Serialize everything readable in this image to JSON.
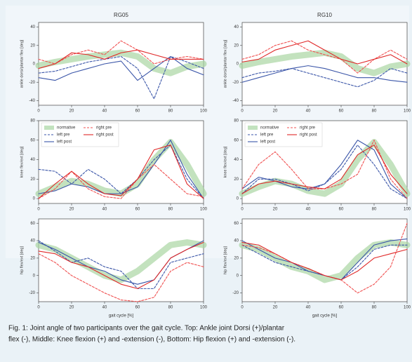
{
  "chart_data": [
    {
      "type": "line",
      "title": "RG05",
      "ylabel": "ankle dorsi/plantar flex [deg]",
      "x": [
        0,
        10,
        20,
        30,
        40,
        50,
        60,
        70,
        80,
        90,
        100
      ],
      "xlim": [
        0,
        100
      ],
      "xticks": [
        0,
        20,
        40,
        60,
        80,
        100
      ],
      "ylim": [
        -45,
        45
      ],
      "yticks": [
        -40,
        -20,
        0,
        20,
        40
      ],
      "series": [
        {
          "color": "#a9d6a3",
          "band": true,
          "values": [
            -2,
            2,
            5,
            8,
            10,
            12,
            8,
            -5,
            -10,
            -3,
            0
          ]
        },
        {
          "color": "#3a55a8",
          "dash": true,
          "values": [
            -10,
            -8,
            -3,
            2,
            5,
            8,
            -5,
            -38,
            8,
            2,
            -5
          ]
        },
        {
          "color": "#3a55a8",
          "values": [
            -15,
            -18,
            -10,
            -5,
            0,
            3,
            -18,
            -5,
            8,
            -5,
            -12
          ]
        },
        {
          "color": "#f05050",
          "dash": true,
          "values": [
            5,
            0,
            10,
            15,
            10,
            25,
            15,
            0,
            5,
            8,
            5
          ]
        },
        {
          "color": "#e02828",
          "values": [
            -5,
            0,
            12,
            10,
            5,
            12,
            15,
            10,
            5,
            5,
            5
          ]
        }
      ]
    },
    {
      "type": "line",
      "title": "RG10",
      "ylabel": "ankle dorsi/plantar flex [deg]",
      "x": [
        0,
        10,
        20,
        30,
        40,
        50,
        60,
        70,
        80,
        90,
        100
      ],
      "xlim": [
        0,
        100
      ],
      "xticks": [
        0,
        20,
        40,
        60,
        80,
        100
      ],
      "ylim": [
        -45,
        45
      ],
      "yticks": [
        -40,
        -20,
        0,
        20,
        40
      ],
      "series": [
        {
          "color": "#a9d6a3",
          "band": true,
          "values": [
            -2,
            2,
            5,
            8,
            10,
            12,
            8,
            -5,
            -10,
            -3,
            0
          ]
        },
        {
          "color": "#3a55a8",
          "dash": true,
          "values": [
            -15,
            -10,
            -8,
            -5,
            -10,
            -15,
            -20,
            -25,
            -18,
            -5,
            -10
          ]
        },
        {
          "color": "#3a55a8",
          "values": [
            -20,
            -15,
            -10,
            -5,
            -2,
            -5,
            -10,
            -15,
            -15,
            -18,
            -20
          ]
        },
        {
          "color": "#f05050",
          "dash": true,
          "values": [
            5,
            10,
            20,
            25,
            15,
            10,
            5,
            -10,
            5,
            15,
            5
          ]
        },
        {
          "color": "#e02828",
          "values": [
            2,
            5,
            15,
            20,
            25,
            15,
            5,
            0,
            5,
            10,
            0
          ]
        }
      ]
    },
    {
      "type": "line",
      "ylabel": "knee flex/ext [deg]",
      "legend": "upper left",
      "x": [
        0,
        10,
        20,
        30,
        40,
        50,
        60,
        70,
        80,
        90,
        100
      ],
      "xlim": [
        0,
        100
      ],
      "xticks": [
        0,
        20,
        40,
        60,
        80,
        100
      ],
      "ylim": [
        -5,
        80
      ],
      "yticks": [
        0,
        20,
        40,
        60,
        80
      ],
      "series": [
        {
          "name": "normative",
          "color": "#a9d6a3",
          "band": true,
          "values": [
            5,
            12,
            18,
            15,
            8,
            5,
            15,
            40,
            58,
            35,
            5
          ]
        },
        {
          "name": "left pre",
          "color": "#3a55a8",
          "dash": true,
          "values": [
            30,
            28,
            15,
            30,
            20,
            5,
            20,
            40,
            55,
            20,
            0
          ]
        },
        {
          "name": "left post",
          "color": "#3a55a8",
          "values": [
            5,
            8,
            15,
            12,
            5,
            5,
            12,
            35,
            60,
            25,
            0
          ]
        },
        {
          "name": "right pre",
          "color": "#f05050",
          "dash": true,
          "values": [
            0,
            10,
            28,
            10,
            2,
            0,
            20,
            35,
            20,
            5,
            2
          ]
        },
        {
          "name": "right post",
          "color": "#e02828",
          "values": [
            0,
            15,
            28,
            15,
            5,
            3,
            20,
            50,
            55,
            15,
            0
          ]
        }
      ]
    },
    {
      "type": "line",
      "ylabel": "knee flex/ext [deg]",
      "legend": "upper left",
      "x": [
        0,
        10,
        20,
        30,
        40,
        50,
        60,
        70,
        80,
        90,
        100
      ],
      "xlim": [
        0,
        100
      ],
      "xticks": [
        0,
        20,
        40,
        60,
        80,
        100
      ],
      "ylim": [
        -5,
        80
      ],
      "yticks": [
        0,
        20,
        40,
        60,
        80
      ],
      "series": [
        {
          "name": "normative",
          "color": "#a9d6a3",
          "band": true,
          "values": [
            5,
            12,
            18,
            15,
            8,
            5,
            15,
            40,
            58,
            35,
            5
          ]
        },
        {
          "name": "left pre",
          "color": "#3a55a8",
          "dash": true,
          "values": [
            5,
            20,
            20,
            15,
            8,
            15,
            30,
            55,
            35,
            10,
            0
          ]
        },
        {
          "name": "left post",
          "color": "#3a55a8",
          "values": [
            10,
            22,
            18,
            12,
            10,
            15,
            35,
            60,
            50,
            15,
            0
          ]
        },
        {
          "name": "right pre",
          "color": "#f05050",
          "dash": true,
          "values": [
            10,
            35,
            48,
            30,
            10,
            10,
            15,
            25,
            60,
            20,
            0
          ]
        },
        {
          "name": "right post",
          "color": "#e02828",
          "values": [
            5,
            15,
            18,
            15,
            12,
            10,
            20,
            45,
            55,
            25,
            5
          ]
        }
      ]
    },
    {
      "type": "line",
      "ylabel": "hip flex/ext [deg]",
      "xlabel": "gait cycle [%]",
      "x": [
        0,
        10,
        20,
        30,
        40,
        50,
        60,
        70,
        80,
        90,
        100
      ],
      "xlim": [
        0,
        100
      ],
      "xticks": [
        0,
        20,
        40,
        60,
        80,
        100
      ],
      "ylim": [
        -30,
        65
      ],
      "yticks": [
        -20,
        0,
        20,
        40,
        60
      ],
      "series": [
        {
          "color": "#a9d6a3",
          "band": true,
          "values": [
            35,
            30,
            20,
            10,
            0,
            -5,
            5,
            20,
            35,
            38,
            35
          ]
        },
        {
          "color": "#3a55a8",
          "dash": true,
          "values": [
            40,
            28,
            15,
            20,
            10,
            5,
            -15,
            -15,
            15,
            20,
            25
          ]
        },
        {
          "color": "#3a55a8",
          "values": [
            38,
            30,
            20,
            10,
            5,
            -5,
            -10,
            -5,
            20,
            30,
            40
          ]
        },
        {
          "color": "#f05050",
          "dash": true,
          "values": [
            25,
            15,
            0,
            -10,
            -20,
            -28,
            -30,
            -25,
            5,
            15,
            10
          ]
        },
        {
          "color": "#e02828",
          "values": [
            28,
            25,
            15,
            10,
            0,
            -10,
            -15,
            -5,
            20,
            30,
            38
          ]
        }
      ]
    },
    {
      "type": "line",
      "ylabel": "hip flex/ext [deg]",
      "xlabel": "gait cycle [%]",
      "x": [
        0,
        10,
        20,
        30,
        40,
        50,
        60,
        70,
        80,
        90,
        100
      ],
      "xlim": [
        0,
        100
      ],
      "xticks": [
        0,
        20,
        40,
        60,
        80,
        100
      ],
      "ylim": [
        -30,
        65
      ],
      "yticks": [
        -20,
        0,
        20,
        40,
        60
      ],
      "series": [
        {
          "color": "#a9d6a3",
          "band": true,
          "values": [
            35,
            30,
            20,
            10,
            5,
            -5,
            0,
            20,
            35,
            38,
            35
          ]
        },
        {
          "color": "#3a55a8",
          "dash": true,
          "values": [
            35,
            25,
            15,
            10,
            5,
            0,
            -5,
            10,
            30,
            35,
            35
          ]
        },
        {
          "color": "#3a55a8",
          "values": [
            40,
            30,
            20,
            15,
            5,
            0,
            -5,
            15,
            35,
            40,
            42
          ]
        },
        {
          "color": "#f05050",
          "dash": true,
          "values": [
            35,
            32,
            25,
            15,
            8,
            0,
            -5,
            -20,
            -10,
            10,
            60
          ]
        },
        {
          "color": "#e02828",
          "values": [
            38,
            35,
            25,
            15,
            8,
            0,
            -5,
            5,
            20,
            25,
            30
          ]
        }
      ]
    }
  ],
  "caption": [
    "Fig. 1: Joint angle of two participants over the gait cycle. Top: Ankle joint Dorsi (+)/plantar",
    "flex (-), Middle: Knee flexion (+) and -extension (-), Bottom: Hip flexion (+) and -extension (-)."
  ]
}
